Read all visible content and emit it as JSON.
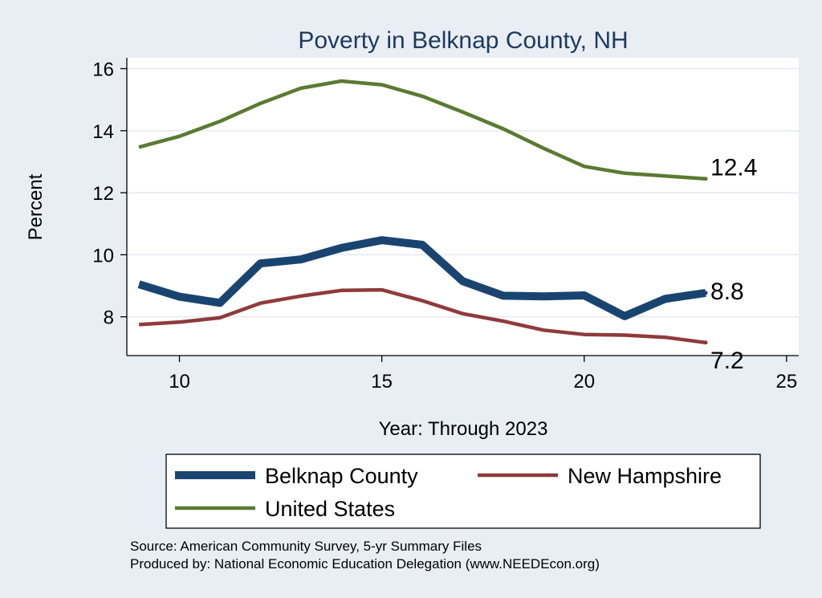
{
  "chart_data": {
    "type": "line",
    "title": "Poverty in Belknap County, NH",
    "xlabel": "Year: Through 2023",
    "ylabel": "Percent",
    "xlim": [
      8.7,
      25.3
    ],
    "ylim": [
      6.75,
      16.35
    ],
    "xticks": [
      "10",
      "15",
      "20",
      "25"
    ],
    "yticks": [
      "8",
      "10",
      "12",
      "14",
      "16"
    ],
    "grid": true,
    "legend_position": "bottom",
    "series": [
      {
        "name": "Belknap County",
        "color": "#1a4470",
        "x": [
          9,
          10,
          11,
          12,
          13,
          14,
          15,
          16,
          17,
          18,
          19,
          20,
          21,
          22,
          23
        ],
        "values": [
          9.05,
          8.65,
          8.45,
          9.72,
          9.85,
          10.22,
          10.47,
          10.32,
          9.15,
          8.68,
          8.66,
          8.69,
          8.02,
          8.58,
          8.77
        ],
        "end_label": "8.8"
      },
      {
        "name": "New Hampshire",
        "color": "#8f3a3c",
        "x": [
          9,
          10,
          11,
          12,
          13,
          14,
          15,
          16,
          17,
          18,
          19,
          20,
          21,
          22,
          23
        ],
        "values": [
          7.75,
          7.83,
          7.97,
          8.44,
          8.67,
          8.85,
          8.87,
          8.52,
          8.1,
          7.86,
          7.57,
          7.43,
          7.41,
          7.34,
          7.17
        ],
        "end_label": "7.2"
      },
      {
        "name": "United States",
        "color": "#5b7a31",
        "x": [
          9,
          10,
          11,
          12,
          13,
          14,
          15,
          16,
          17,
          18,
          19,
          20,
          21,
          22,
          23
        ],
        "values": [
          13.47,
          13.82,
          14.3,
          14.88,
          15.37,
          15.6,
          15.48,
          15.11,
          14.6,
          14.06,
          13.43,
          12.85,
          12.63,
          12.54,
          12.45
        ],
        "end_label": "12.4"
      }
    ],
    "notes": [
      "Source: American Community Survey, 5-yr Summary Files",
      "Produced by: National Economic Education Delegation (www.NEEDEcon.org)"
    ]
  }
}
